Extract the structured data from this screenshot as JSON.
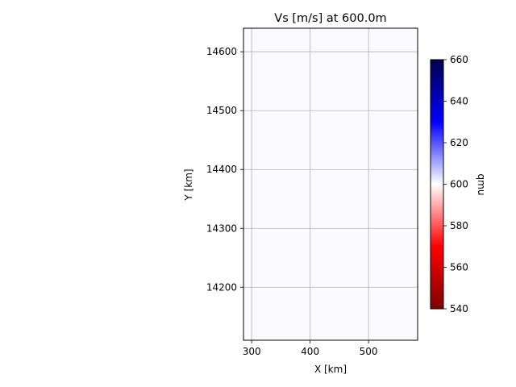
{
  "chart_data": {
    "type": "heatmap",
    "title": "Vs [m/s] at 600.0m",
    "xlabel": "X [km]",
    "ylabel": "Y [km]",
    "xlim": [
      286,
      584
    ],
    "ylim": [
      14110,
      14640
    ],
    "xticks": [
      300,
      400,
      500
    ],
    "yticks": [
      14200,
      14300,
      14400,
      14500,
      14600
    ],
    "grid": true,
    "field_value": 608,
    "colorbar": {
      "label": "qmu",
      "range": [
        540,
        660
      ],
      "ticks": [
        540,
        560,
        580,
        600,
        620,
        640,
        660
      ],
      "colormap": "seismic_r",
      "colors": [
        "#7f0000",
        "#ff0000",
        "#ffffff",
        "#0000ff",
        "#00004c"
      ]
    }
  }
}
